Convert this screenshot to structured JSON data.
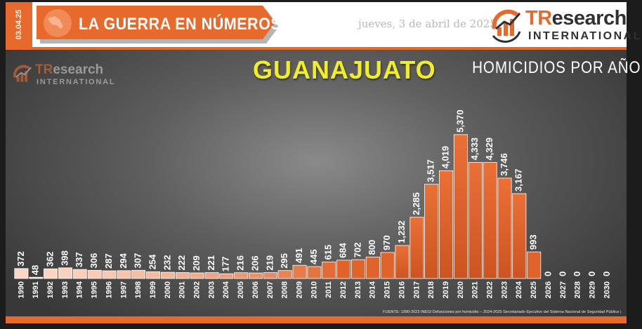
{
  "header": {
    "date_tab": "03.04.25",
    "banner_title": "LA GUERRA EN NÚMEROS",
    "date_text": "jueves, 3 de abril de 2025",
    "logo_name_prefix": "TR",
    "logo_name_rest": "esearch",
    "logo_subtitle": "INTERNATIONAL"
  },
  "colors": {
    "accent": "#e8692c",
    "bar_dark": "#e0642a",
    "bar_light": "#fbd6c4",
    "title_yellow": "#f2ee26"
  },
  "chart_data": {
    "type": "bar",
    "title": "GUANAJUATO",
    "subtitle": "HOMICIDIOS POR AÑO",
    "xlabel": "",
    "ylabel": "",
    "categories": [
      "1990",
      "1991",
      "1992",
      "1993",
      "1994",
      "1995",
      "1996",
      "1997",
      "1998",
      "1999",
      "2000",
      "2001",
      "2002",
      "2003",
      "2004",
      "2005",
      "2006",
      "2007",
      "2008",
      "2009",
      "2010",
      "2011",
      "2012",
      "2013",
      "2014",
      "2015",
      "2016",
      "2017",
      "2018",
      "2019",
      "2020",
      "2021",
      "2022",
      "2023",
      "2024",
      "2025",
      "2026",
      "2027",
      "2028",
      "2029",
      "2030"
    ],
    "values": [
      372,
      48,
      362,
      398,
      337,
      306,
      287,
      294,
      307,
      254,
      232,
      222,
      209,
      221,
      177,
      216,
      206,
      219,
      295,
      491,
      445,
      615,
      684,
      702,
      800,
      970,
      1232,
      2285,
      3517,
      4019,
      5370,
      4333,
      4329,
      3746,
      3167,
      993,
      0,
      0,
      0,
      0,
      0
    ],
    "value_labels": [
      "372",
      "48",
      "362",
      "398",
      "337",
      "306",
      "287",
      "294",
      "307",
      "254",
      "232",
      "222",
      "209",
      "221",
      "177",
      "216",
      "206",
      "219",
      "295",
      "491",
      "445",
      "615",
      "684",
      "702",
      "800",
      "970",
      "1,232",
      "2,285",
      "3,517",
      "4,019",
      "5,370",
      "4,333",
      "4,329",
      "3,746",
      "3,167",
      "993",
      "0",
      "0",
      "0",
      "0",
      "0"
    ],
    "legend": "none",
    "grid": false
  },
  "footer": {
    "source": "FUENTE: 1990-2023 INEGI Defunciones por homicidio – 2024-2025 Secretariado Ejecutivo del Sistema Nacional de Seguridad Pública |"
  }
}
